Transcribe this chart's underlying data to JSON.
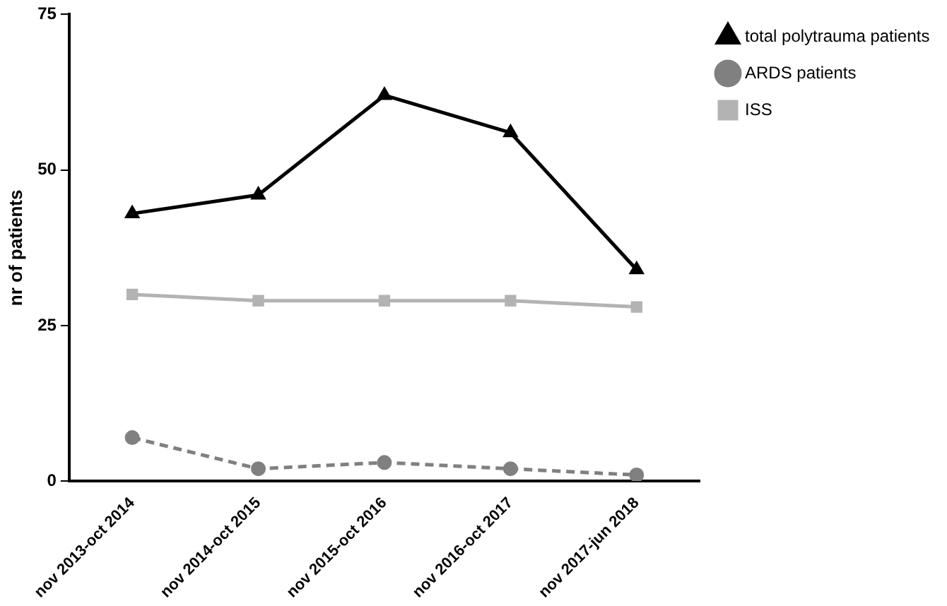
{
  "chart_data": {
    "type": "line",
    "ylabel": "nr of patients",
    "categories": [
      "nov 2013-oct 2014",
      "nov 2014-oct 2015",
      "nov 2015-oct 2016",
      "nov 2016-oct 2017",
      "nov 2017-jun 2018"
    ],
    "series": [
      {
        "name": "total polytrauma patients",
        "color": "#000000",
        "marker": "triangle",
        "line_style": "solid",
        "values": [
          43,
          46,
          62,
          56,
          34
        ]
      },
      {
        "name": "ARDS patients",
        "color": "#808080",
        "marker": "circle",
        "line_style": "dashed",
        "values": [
          7,
          2,
          3,
          2,
          1
        ]
      },
      {
        "name": "ISS",
        "color": "#b3b3b3",
        "marker": "square",
        "line_style": "solid",
        "values": [
          30,
          29,
          29,
          29,
          28
        ]
      }
    ],
    "ylim": [
      0,
      75
    ],
    "yticks": [
      0,
      25,
      50,
      75
    ],
    "grid": false,
    "legend": "top right"
  }
}
